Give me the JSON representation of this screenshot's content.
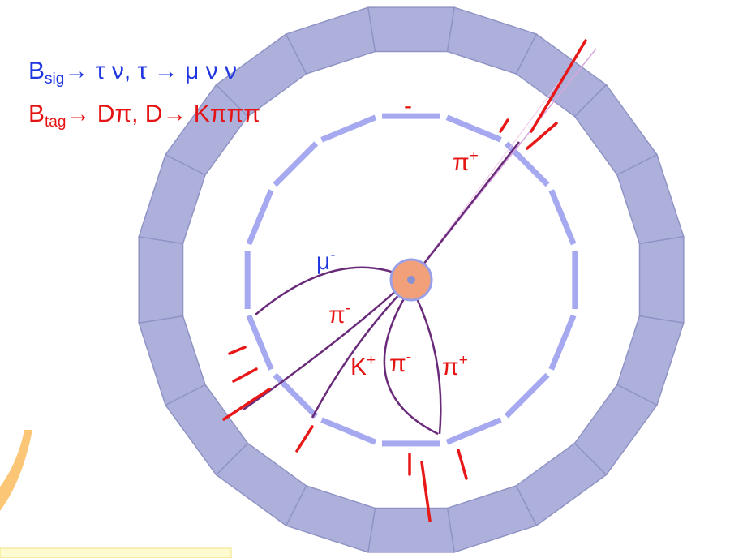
{
  "header": {
    "lines": [
      {
        "particle": "B",
        "subscript": "sig",
        "decay": "→ τ ν, τ → μ ν ν"
      },
      {
        "particle": "B",
        "subscript": "tag",
        "decay": "→ Dπ, D→ Kπππ"
      }
    ]
  },
  "tracks": [
    {
      "symbol": "π",
      "charge": "+"
    },
    {
      "symbol": "μ",
      "charge": "-"
    },
    {
      "symbol": "π",
      "charge": "-"
    },
    {
      "symbol": "K",
      "charge": "+"
    },
    {
      "symbol": "π",
      "charge": "-"
    },
    {
      "symbol": "π",
      "charge": "+"
    }
  ],
  "marker": "-"
}
